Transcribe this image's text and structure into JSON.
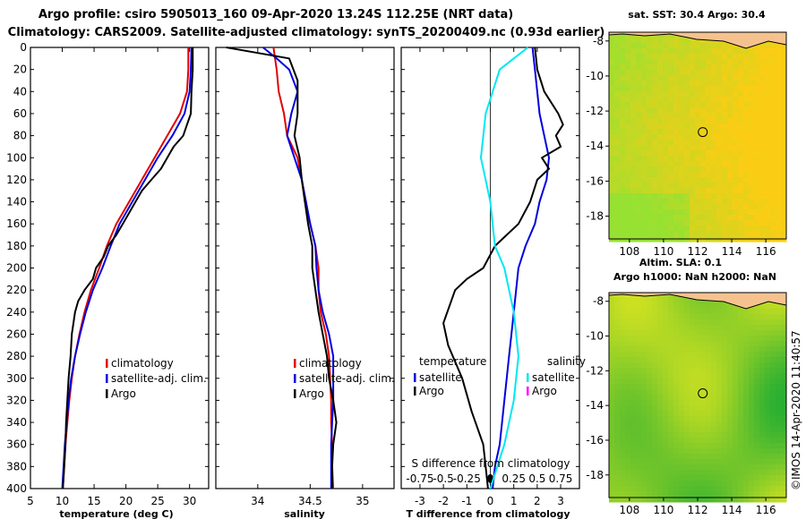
{
  "titles": {
    "line1": "Argo profile: csiro 5905013_160 09-Apr-2020 13.24S 112.25E (NRT data)",
    "line2": "Climatology: CARS2009. Satellite-adjusted climatology: synTS_20200409.nc (0.93d earlier)"
  },
  "colors": {
    "climatology": "#e00000",
    "satellite": "#0000e0",
    "argo": "#000000",
    "sat_salinity": "#00e8f0",
    "argo_salinity": "#ff00ff"
  },
  "credit": "©IMOS 14-Apr-2020 11:40:57",
  "chart_data": [
    {
      "type": "line",
      "xlabel": "temperature (deg C)",
      "ylabel": "",
      "xlim": [
        5,
        33
      ],
      "ylim": [
        400,
        0
      ],
      "x_ticks": [
        "5",
        "10",
        "15",
        "20",
        "25",
        "30"
      ],
      "y_ticks": [
        "0",
        "20",
        "40",
        "60",
        "80",
        "100",
        "120",
        "140",
        "160",
        "180",
        "200",
        "220",
        "240",
        "260",
        "280",
        "300",
        "320",
        "340",
        "360",
        "380",
        "400"
      ],
      "legend": [
        "climatology",
        "satellite-adj. clim.",
        "Argo"
      ],
      "series": [
        {
          "name": "climatology",
          "points": [
            [
              29.8,
              0
            ],
            [
              29.8,
              20
            ],
            [
              29.6,
              40
            ],
            [
              28.5,
              60
            ],
            [
              26.5,
              80
            ],
            [
              24.5,
              100
            ],
            [
              22.5,
              120
            ],
            [
              20.5,
              140
            ],
            [
              18.5,
              160
            ],
            [
              17,
              180
            ],
            [
              15.8,
              200
            ],
            [
              14.5,
              220
            ],
            [
              13.5,
              240
            ],
            [
              12.7,
              260
            ],
            [
              12,
              280
            ],
            [
              11.5,
              300
            ],
            [
              11.1,
              320
            ],
            [
              10.8,
              340
            ],
            [
              10.5,
              360
            ],
            [
              10.3,
              380
            ],
            [
              10.1,
              400
            ]
          ]
        },
        {
          "name": "satellite-adj. clim.",
          "points": [
            [
              30.3,
              0
            ],
            [
              30.2,
              20
            ],
            [
              30,
              40
            ],
            [
              29.2,
              60
            ],
            [
              27.3,
              80
            ],
            [
              25,
              100
            ],
            [
              23,
              120
            ],
            [
              21,
              140
            ],
            [
              19,
              160
            ],
            [
              17.6,
              180
            ],
            [
              16.3,
              200
            ],
            [
              14.8,
              220
            ],
            [
              13.7,
              240
            ],
            [
              12.8,
              260
            ],
            [
              12,
              280
            ],
            [
              11.4,
              300
            ],
            [
              11,
              320
            ],
            [
              10.7,
              340
            ],
            [
              10.4,
              360
            ],
            [
              10.2,
              380
            ],
            [
              10,
              400
            ]
          ]
        },
        {
          "name": "Argo",
          "points": [
            [
              30.5,
              0
            ],
            [
              30.5,
              20
            ],
            [
              30.3,
              40
            ],
            [
              30.2,
              60
            ],
            [
              29.6,
              70
            ],
            [
              29,
              80
            ],
            [
              27.5,
              90
            ],
            [
              26.5,
              100
            ],
            [
              25.5,
              110
            ],
            [
              24,
              120
            ],
            [
              22.5,
              130
            ],
            [
              21.5,
              140
            ],
            [
              20.5,
              150
            ],
            [
              19.5,
              160
            ],
            [
              18.5,
              170
            ],
            [
              17.2,
              180
            ],
            [
              16.5,
              190
            ],
            [
              15.3,
              200
            ],
            [
              14.8,
              210
            ],
            [
              13.5,
              220
            ],
            [
              12.5,
              230
            ],
            [
              12,
              240
            ],
            [
              11.5,
              260
            ],
            [
              11.3,
              280
            ],
            [
              11,
              300
            ],
            [
              10.8,
              320
            ],
            [
              10.6,
              340
            ],
            [
              10.5,
              360
            ],
            [
              10.3,
              380
            ],
            [
              10.1,
              400
            ]
          ]
        }
      ]
    },
    {
      "type": "line",
      "xlabel": "salinity",
      "xlim": [
        33.6,
        35.3
      ],
      "ylim": [
        400,
        0
      ],
      "x_ticks": [
        "34",
        "34.5",
        "35"
      ],
      "legend": [
        "climatology",
        "satellite-adj. clim.",
        "Argo"
      ],
      "series": [
        {
          "name": "climatology",
          "points": [
            [
              34.15,
              0
            ],
            [
              34.18,
              20
            ],
            [
              34.2,
              40
            ],
            [
              34.25,
              60
            ],
            [
              34.28,
              80
            ],
            [
              34.38,
              100
            ],
            [
              34.42,
              120
            ],
            [
              34.45,
              140
            ],
            [
              34.5,
              160
            ],
            [
              34.55,
              180
            ],
            [
              34.58,
              200
            ],
            [
              34.58,
              220
            ],
            [
              34.6,
              240
            ],
            [
              34.65,
              260
            ],
            [
              34.68,
              280
            ],
            [
              34.69,
              300
            ],
            [
              34.7,
              320
            ],
            [
              34.7,
              340
            ],
            [
              34.71,
              360
            ],
            [
              34.71,
              380
            ],
            [
              34.72,
              400
            ]
          ]
        },
        {
          "name": "satellite-adj. clim.",
          "points": [
            [
              34.05,
              0
            ],
            [
              34.18,
              10
            ],
            [
              34.3,
              20
            ],
            [
              34.38,
              40
            ],
            [
              34.32,
              60
            ],
            [
              34.28,
              80
            ],
            [
              34.35,
              100
            ],
            [
              34.42,
              120
            ],
            [
              34.46,
              140
            ],
            [
              34.5,
              160
            ],
            [
              34.55,
              180
            ],
            [
              34.56,
              200
            ],
            [
              34.58,
              220
            ],
            [
              34.62,
              240
            ],
            [
              34.68,
              260
            ],
            [
              34.72,
              280
            ],
            [
              34.72,
              300
            ],
            [
              34.72,
              320
            ],
            [
              34.71,
              340
            ],
            [
              34.7,
              360
            ],
            [
              34.7,
              380
            ],
            [
              34.7,
              400
            ]
          ]
        },
        {
          "name": "Argo",
          "points": [
            [
              33.7,
              0
            ],
            [
              34.3,
              10
            ],
            [
              34.38,
              30
            ],
            [
              34.38,
              60
            ],
            [
              34.35,
              80
            ],
            [
              34.4,
              100
            ],
            [
              34.42,
              120
            ],
            [
              34.45,
              140
            ],
            [
              34.48,
              160
            ],
            [
              34.52,
              180
            ],
            [
              34.52,
              200
            ],
            [
              34.55,
              220
            ],
            [
              34.58,
              240
            ],
            [
              34.62,
              260
            ],
            [
              34.66,
              280
            ],
            [
              34.68,
              300
            ],
            [
              34.72,
              320
            ],
            [
              34.75,
              340
            ],
            [
              34.72,
              360
            ],
            [
              34.71,
              380
            ],
            [
              34.71,
              400
            ]
          ]
        }
      ]
    },
    {
      "type": "line",
      "xlabel": "T difference from climatology",
      "annotation": "S difference from climatology",
      "xlim": [
        -3.8,
        3.8
      ],
      "ylim": [
        400,
        0
      ],
      "x_ticks": [
        "-3",
        "-2",
        "-1",
        "0",
        "1",
        "2",
        "3"
      ],
      "top_ticks": [
        "-0.75",
        "-0.5",
        "-0.25",
        "0",
        "0.25",
        "0.5",
        "0.75"
      ],
      "legend_temperature_title": "temperature",
      "legend_salinity_title": "salinity",
      "legend_temperature": [
        "satellite",
        "Argo"
      ],
      "legend_salinity": [
        "satellite",
        "Argo"
      ],
      "series": [
        {
          "name": "temperature satellite",
          "points": [
            [
              1.8,
              0
            ],
            [
              1.9,
              20
            ],
            [
              2,
              40
            ],
            [
              2.1,
              60
            ],
            [
              2.3,
              80
            ],
            [
              2.5,
              100
            ],
            [
              2.4,
              120
            ],
            [
              2.1,
              140
            ],
            [
              1.9,
              160
            ],
            [
              1.5,
              180
            ],
            [
              1.2,
              200
            ],
            [
              1.1,
              220
            ],
            [
              1.0,
              240
            ],
            [
              0.9,
              260
            ],
            [
              0.8,
              280
            ],
            [
              0.7,
              300
            ],
            [
              0.6,
              320
            ],
            [
              0.5,
              340
            ],
            [
              0.4,
              360
            ],
            [
              0.2,
              380
            ],
            [
              0.1,
              400
            ]
          ]
        },
        {
          "name": "temperature Argo",
          "points": [
            [
              1.9,
              0
            ],
            [
              2.0,
              20
            ],
            [
              2.3,
              40
            ],
            [
              2.9,
              60
            ],
            [
              3.1,
              70
            ],
            [
              2.8,
              80
            ],
            [
              3,
              90
            ],
            [
              2.2,
              100
            ],
            [
              2.5,
              110
            ],
            [
              2,
              120
            ],
            [
              1.7,
              140
            ],
            [
              1.2,
              160
            ],
            [
              0.2,
              180
            ],
            [
              -0.3,
              200
            ],
            [
              -1,
              210
            ],
            [
              -1.5,
              220
            ],
            [
              -2,
              250
            ],
            [
              -1.8,
              270
            ],
            [
              -1.2,
              300
            ],
            [
              -0.8,
              330
            ],
            [
              -0.3,
              360
            ],
            [
              -0.2,
              380
            ],
            [
              -0.1,
              400
            ]
          ]
        },
        {
          "name": "salinity satellite",
          "points": [
            [
              0.4,
              0
            ],
            [
              0.1,
              20
            ],
            [
              -0.05,
              60
            ],
            [
              -0.1,
              100
            ],
            [
              0,
              140
            ],
            [
              0.05,
              180
            ],
            [
              0.15,
              200
            ],
            [
              0.25,
              240
            ],
            [
              0.3,
              280
            ],
            [
              0.25,
              320
            ],
            [
              0.15,
              360
            ],
            [
              0,
              400
            ]
          ]
        }
      ]
    },
    {
      "type": "heatmap",
      "title": "sat. SST: 30.4 Argo: 30.4",
      "x_ticks": [
        "108",
        "110",
        "112",
        "114",
        "116"
      ],
      "y_ticks": [
        "-8",
        "-10",
        "-12",
        "-14",
        "-16",
        "-18"
      ],
      "xlim": [
        106.8,
        117.2
      ],
      "ylim": [
        -19.3,
        -7.5
      ],
      "marker": [
        112.3,
        -13.2
      ]
    },
    {
      "type": "heatmap",
      "title": "Altim. SLA: 0.1",
      "subtitle": "Argo h1000: NaN h2000: NaN",
      "x_ticks": [
        "108",
        "110",
        "112",
        "114",
        "116"
      ],
      "y_ticks": [
        "-8",
        "-10",
        "-12",
        "-14",
        "-16",
        "-18"
      ],
      "xlim": [
        106.8,
        117.2
      ],
      "ylim": [
        -19.3,
        -7.5
      ],
      "marker": [
        112.3,
        -13.3
      ]
    }
  ]
}
